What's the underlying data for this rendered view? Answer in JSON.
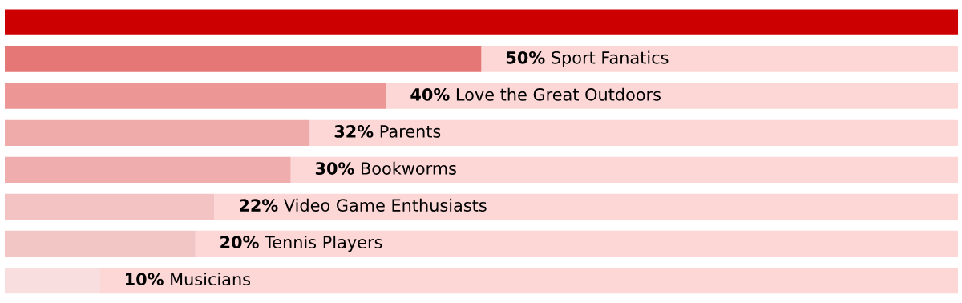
{
  "chart_data": {
    "type": "bar",
    "orientation": "horizontal",
    "stacked": true,
    "xlim": [
      0,
      100
    ],
    "legend": false,
    "categories": [
      null,
      "Sport Fanatics",
      "Love the Great Outdoors",
      "Parents",
      "Bookworms",
      "Video Game Enthusiasts",
      "Tennis Players",
      "Musicians"
    ],
    "series": [
      {
        "colors": [
          "#cc0000",
          "#e57777",
          "#ec9696",
          "#efaaaa",
          "#efadad",
          "#f3c3c3",
          "#f3c6c6",
          "#f8dede"
        ],
        "values": [
          100,
          50,
          40,
          32,
          30,
          22,
          20,
          10
        ],
        "value_labels": [
          null,
          "50%",
          "40%",
          "32%",
          "30%",
          "22%",
          "20%",
          "10%"
        ]
      },
      {
        "color": "#fdd6d6",
        "values": [
          0,
          50,
          60,
          68,
          70,
          78,
          80,
          90
        ]
      }
    ]
  }
}
